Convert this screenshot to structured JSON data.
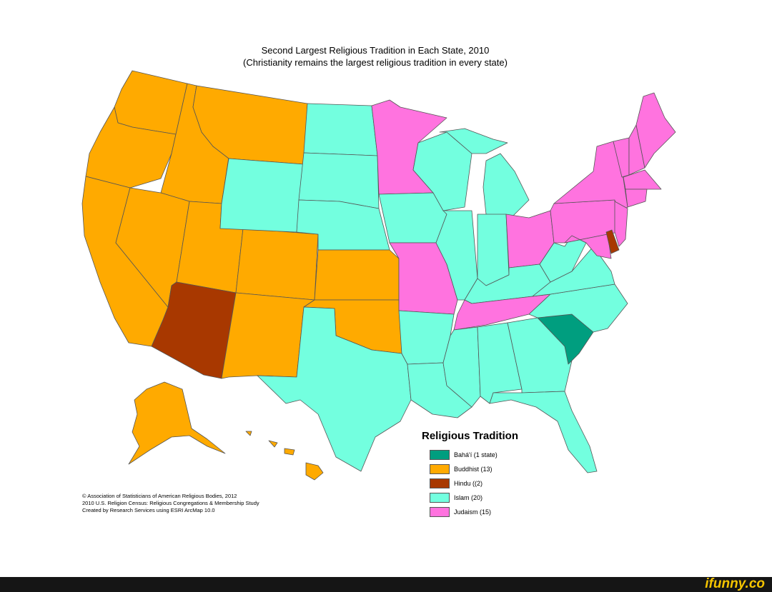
{
  "title": {
    "line1": "Second Largest Religious Tradition in Each State, 2010",
    "line2": "(Christianity remains the largest religious tradition in every state)"
  },
  "legend": {
    "title": "Religious Tradition",
    "items": [
      {
        "label": "Bahá'í (1 state)",
        "color": "#009e7f"
      },
      {
        "label": "Buddhist (13)",
        "color": "#ffaa00"
      },
      {
        "label": "Hindu ((2)",
        "color": "#a83800"
      },
      {
        "label": "Islam (20)",
        "color": "#73ffdf"
      },
      {
        "label": "Judaism (15)",
        "color": "#ff73df"
      }
    ]
  },
  "credits": [
    "© Association of Statisticians of American Religious Bodies, 2012",
    "2010 U.S. Religion Census: Religious Congregations & Membership Study",
    "Created by Research Services using ESRI ArcMap 10.0"
  ],
  "footer": {
    "logo": "ifunny.co"
  },
  "colors": {
    "bahai": "#009e7f",
    "buddhist": "#ffaa00",
    "hindu": "#a83800",
    "islam": "#73ffdf",
    "judaism": "#ff73df",
    "border": "#555555",
    "footer_bg": "#151515",
    "logo": "#f5c400"
  }
}
